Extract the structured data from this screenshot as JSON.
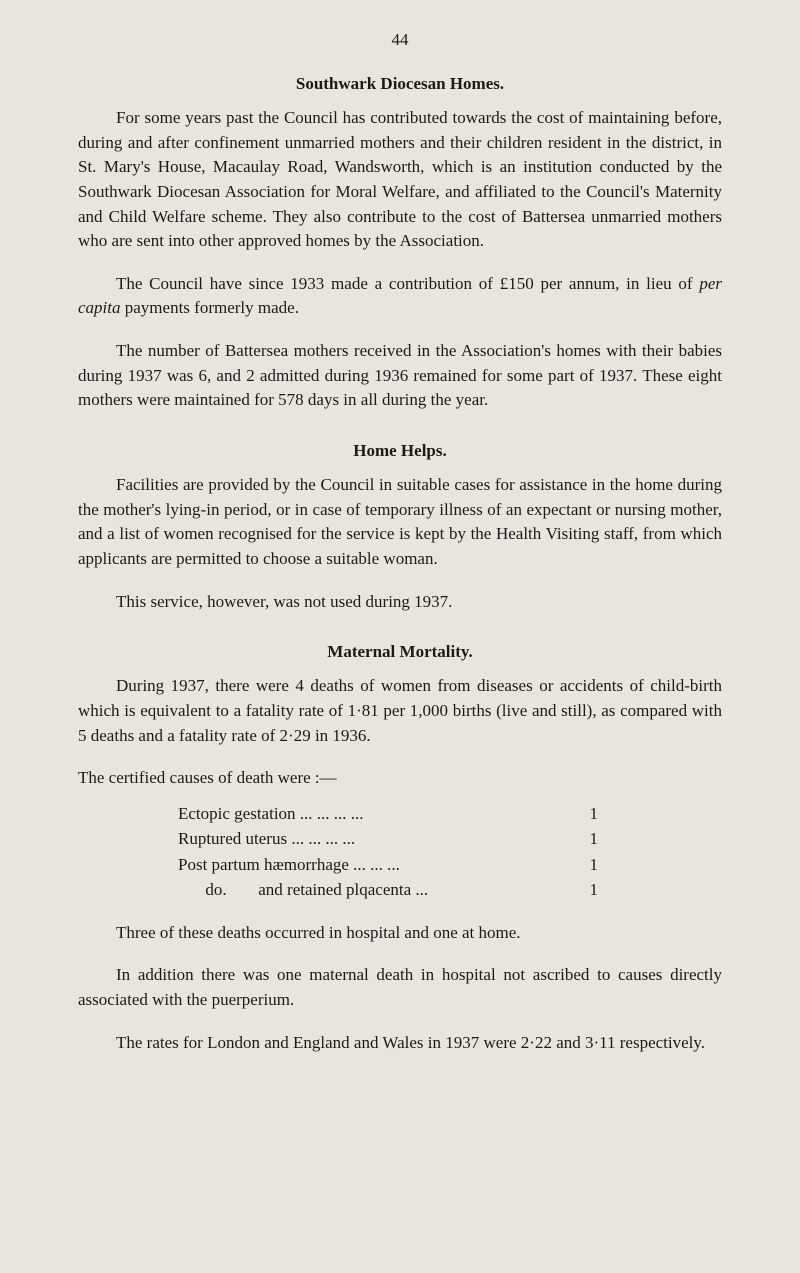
{
  "page_number": "44",
  "section1": {
    "heading": "Southwark Diocesan Homes.",
    "p1": "For some years past the Council has contributed towards the cost of maintaining before, during and after confinement unmarried mothers and their children resident in the district, in St. Mary's House, Macaulay Road, Wandsworth, which is an institution conducted by the Southwark Diocesan Association for Moral Welfare, and affiliated to the Council's Maternity and Child Welfare scheme. They also contribute to the cost of Battersea unmarried mothers who are sent into other approved homes by the Association.",
    "p2_a": "The Council have since 1933 made a contribution of £150 per annum, in lieu of ",
    "p2_b": "per capita",
    "p2_c": " payments formerly made.",
    "p3": "The number of Battersea mothers received in the Association's homes with their babies during 1937 was 6, and 2 admitted during 1936 remained for some part of 1937. These eight mothers were maintained for 578 days in all during the year."
  },
  "section2": {
    "heading": "Home Helps.",
    "p1": "Facilities are provided by the Council in suitable cases for assistance in the home during the mother's lying-in period, or in case of temporary illness of an expectant or nursing mother, and a list of women recognised for the service is kept by the Health Visiting staff, from which applicants are permitted to choose a suitable woman.",
    "p2": "This service, however, was not used during 1937."
  },
  "section3": {
    "heading": "Maternal Mortality.",
    "p1": "During 1937, there were 4 deaths of women from diseases or accidents of child-birth which is equivalent to a fatality rate of 1·81 per 1,000 births (live and still), as compared with 5 deaths and a fatality rate of 2·29 in 1936.",
    "p2": "The certified causes of death were :—",
    "list": [
      {
        "label": "Ectopic gestation    ...    ...    ...    ...",
        "value": "1"
      },
      {
        "label": "Ruptured uterus    ...    ...    ...    ...",
        "value": "1"
      },
      {
        "label": "Post partum hæmorrhage    ...    ...    ...",
        "value": "1"
      },
      {
        "label_prefix": "do.",
        "label_rest": "and retained plqacenta    ...",
        "value": "1"
      }
    ],
    "p3": "Three of these deaths occurred in hospital and one at home.",
    "p4": "In addition there was one maternal death in hospital not ascribed to causes directly associated with the puerperium.",
    "p5": "The rates for London and England and Wales in 1937 were 2·22 and 3·11 respectively."
  },
  "colors": {
    "background": "#e8e6dc",
    "text": "#1a1a1a"
  },
  "typography": {
    "body_fontsize": 17,
    "heading_fontsize": 17,
    "line_height": 1.45,
    "font_family": "Times New Roman"
  }
}
